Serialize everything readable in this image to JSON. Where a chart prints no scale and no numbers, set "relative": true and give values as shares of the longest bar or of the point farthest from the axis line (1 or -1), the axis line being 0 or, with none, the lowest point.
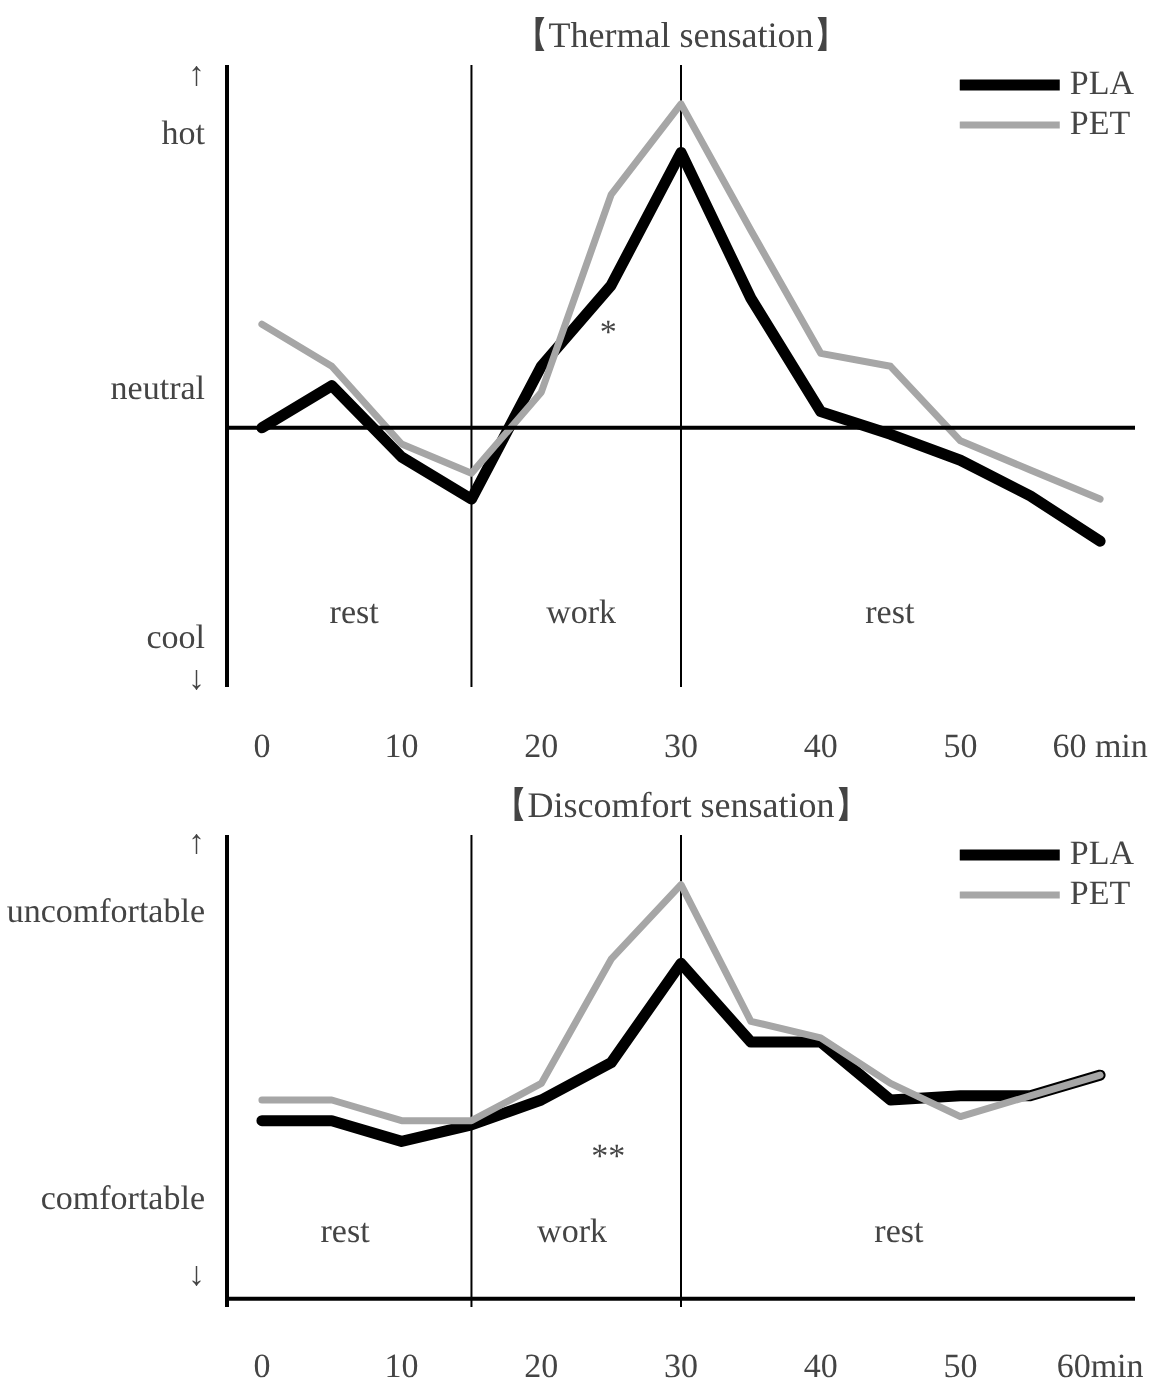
{
  "chart_data": [
    {
      "type": "line",
      "title": "【Thermal sensation】",
      "relative": true,
      "x": [
        0,
        5,
        10,
        15,
        20,
        25,
        30,
        35,
        40,
        45,
        50,
        55,
        60
      ],
      "xlim": [
        -2.5,
        62.5
      ],
      "xticks": [
        0,
        10,
        20,
        30,
        40,
        50,
        {
          "value": 60,
          "label": "60 min"
        }
      ],
      "legend": "top right",
      "line_style": "solid",
      "series": [
        {
          "name": "PLA",
          "color": "#000000",
          "values": [
            0,
            0.13,
            -0.09,
            -0.22,
            0.19,
            0.44,
            0.85,
            0.4,
            0.05,
            -0.02,
            -0.1,
            -0.21,
            -0.35
          ]
        },
        {
          "name": "PET",
          "color": "#a6a6a6",
          "values": [
            0.32,
            0.19,
            -0.05,
            -0.14,
            0.11,
            0.72,
            1,
            0.61,
            0.23,
            0.19,
            -0.04,
            -0.13,
            -0.22
          ]
        }
      ],
      "ref_lines": [
        {
          "axis": "x",
          "value": 15,
          "color": "#000000"
        },
        {
          "axis": "x",
          "value": 30,
          "color": "#000000"
        }
      ],
      "annotations": [
        "↑",
        "hot",
        "neutral",
        "cool",
        "↓",
        "rest",
        "work",
        "rest",
        "*"
      ]
    },
    {
      "type": "line",
      "title": "【Discomfort sensation】",
      "relative": true,
      "x": [
        0,
        5,
        10,
        15,
        20,
        25,
        30,
        35,
        40,
        45,
        50,
        55,
        60
      ],
      "xlim": [
        -2.5,
        62.5
      ],
      "xticks": [
        0,
        10,
        20,
        30,
        40,
        50,
        {
          "value": 60,
          "label": "60min"
        }
      ],
      "legend": "top right",
      "line_style": "solid",
      "series": [
        {
          "name": "PLA",
          "color": "#000000",
          "values": [
            0.43,
            0.43,
            0.38,
            0.42,
            0.48,
            0.57,
            0.81,
            0.62,
            0.62,
            0.48,
            0.49,
            0.49,
            0.54
          ]
        },
        {
          "name": "PET",
          "color": "#a6a6a6",
          "values": [
            0.48,
            0.48,
            0.43,
            0.43,
            0.52,
            0.82,
            1,
            0.67,
            0.63,
            0.52,
            0.44,
            0.49,
            0.54
          ]
        }
      ],
      "ref_lines": [
        {
          "axis": "x",
          "value": 15,
          "color": "#000000"
        },
        {
          "axis": "x",
          "value": 30,
          "color": "#000000"
        }
      ],
      "annotations": [
        "↑",
        "uncomfortable",
        "comfortable",
        "↓",
        "rest",
        "work",
        "rest",
        "**"
      ]
    }
  ]
}
